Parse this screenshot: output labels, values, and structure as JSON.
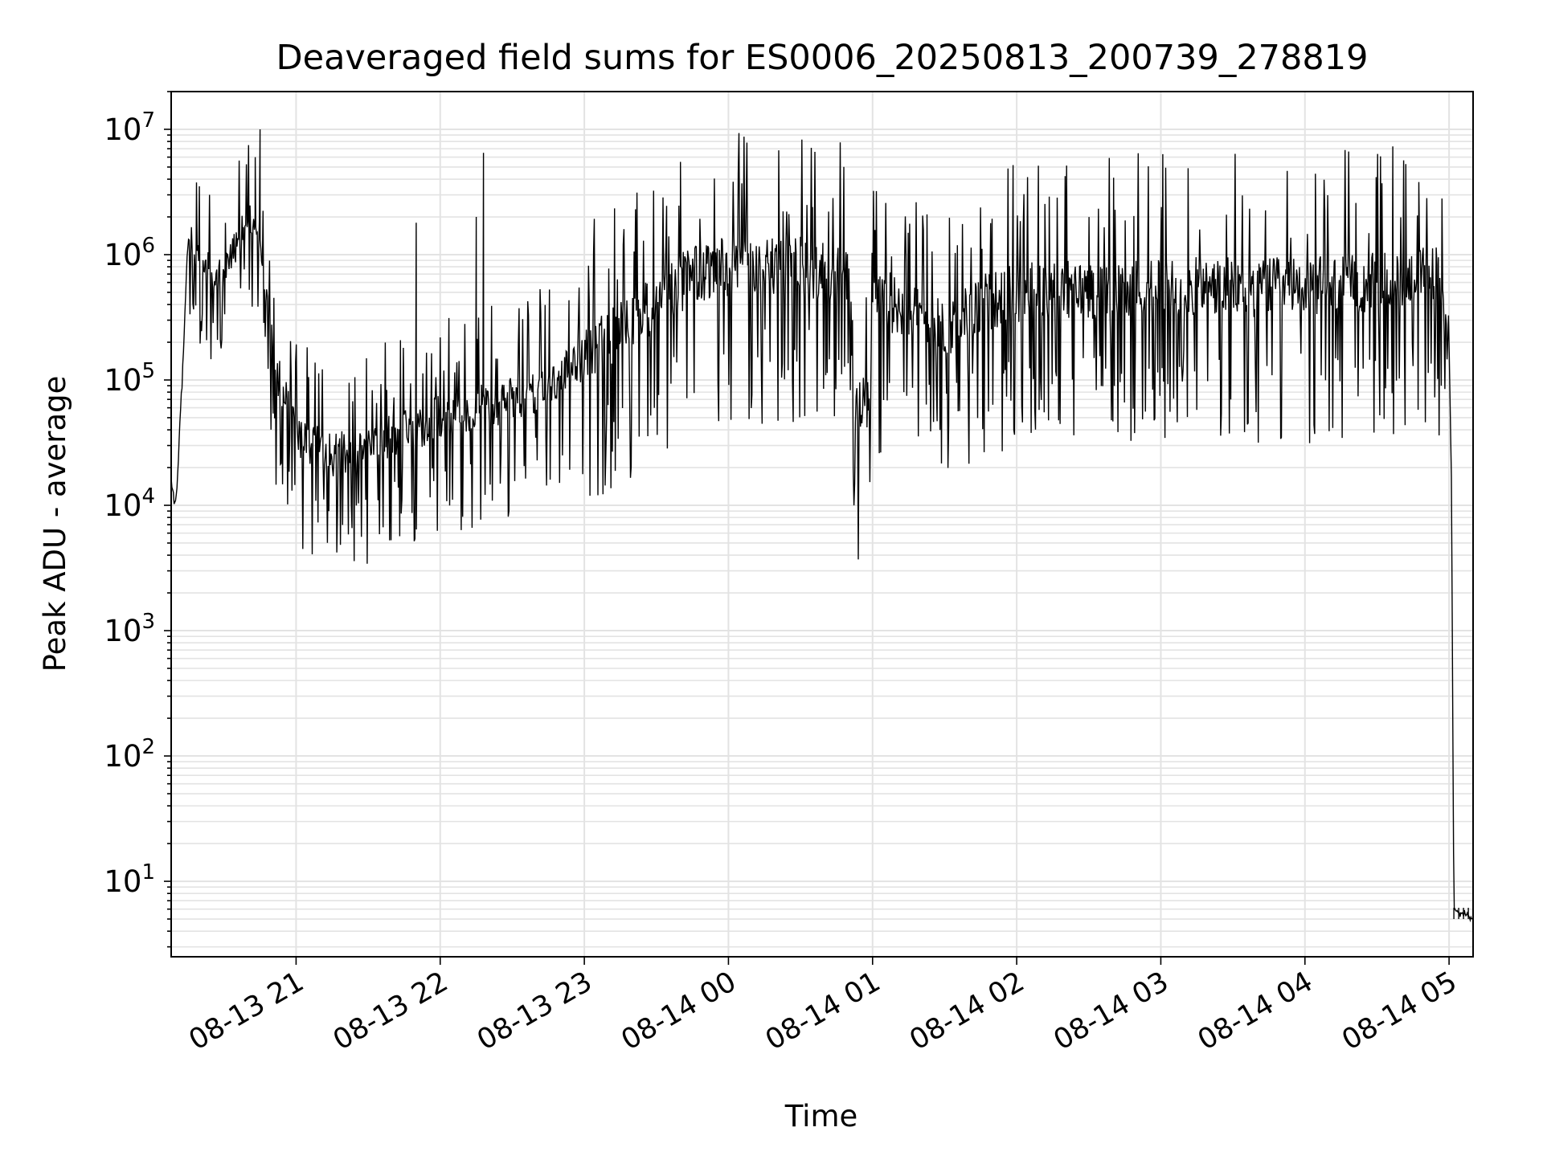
{
  "chart_data": {
    "type": "line",
    "title": "Deaveraged field sums for ES0006_20250813_200739_278819",
    "xlabel": "Time",
    "ylabel": "Peak ADU - average",
    "yscale": "log",
    "ylim": [
      2.5,
      20000000
    ],
    "xlim": [
      "2025-08-13 20:08",
      "2025-08-14 05:10"
    ],
    "grid": "major and minor",
    "line_color": "#000000",
    "x_ticks": [
      {
        "t": "2025-08-13 21:00",
        "label": "08-13 21"
      },
      {
        "t": "2025-08-13 22:00",
        "label": "08-13 22"
      },
      {
        "t": "2025-08-13 23:00",
        "label": "08-13 23"
      },
      {
        "t": "2025-08-14 00:00",
        "label": "08-14 00"
      },
      {
        "t": "2025-08-14 01:00",
        "label": "08-14 01"
      },
      {
        "t": "2025-08-14 02:00",
        "label": "08-14 02"
      },
      {
        "t": "2025-08-14 03:00",
        "label": "08-14 03"
      },
      {
        "t": "2025-08-14 04:00",
        "label": "08-14 04"
      },
      {
        "t": "2025-08-14 05:00",
        "label": "08-14 05"
      }
    ],
    "y_ticks": [
      {
        "value": 10,
        "base": "10",
        "exp": "1"
      },
      {
        "value": 100,
        "base": "10",
        "exp": "2"
      },
      {
        "value": 1000,
        "base": "10",
        "exp": "3"
      },
      {
        "value": 10000,
        "base": "10",
        "exp": "4"
      },
      {
        "value": 100000,
        "base": "10",
        "exp": "5"
      },
      {
        "value": 1000000,
        "base": "10",
        "exp": "6"
      },
      {
        "value": 10000000,
        "base": "10",
        "exp": "7"
      }
    ],
    "series": [
      {
        "baseline": [
          {
            "t": "2025-08-13 20:08",
            "y": 14000
          },
          {
            "t": "2025-08-13 20:10",
            "y": 11000
          },
          {
            "t": "2025-08-13 20:13",
            "y": 150000
          },
          {
            "t": "2025-08-13 20:15",
            "y": 1500000
          },
          {
            "t": "2025-08-13 20:20",
            "y": 800000
          },
          {
            "t": "2025-08-13 20:30",
            "y": 700000
          },
          {
            "t": "2025-08-13 20:40",
            "y": 2000000
          },
          {
            "t": "2025-08-13 20:45",
            "y": 1500000
          },
          {
            "t": "2025-08-13 20:50",
            "y": 150000
          },
          {
            "t": "2025-08-13 21:00",
            "y": 35000
          },
          {
            "t": "2025-08-13 21:15",
            "y": 25000
          },
          {
            "t": "2025-08-13 21:30",
            "y": 30000
          },
          {
            "t": "2025-08-13 21:45",
            "y": 38000
          },
          {
            "t": "2025-08-13 22:00",
            "y": 50000
          },
          {
            "t": "2025-08-13 22:30",
            "y": 70000
          },
          {
            "t": "2025-08-13 22:45",
            "y": 90000
          },
          {
            "t": "2025-08-13 23:00",
            "y": 150000
          },
          {
            "t": "2025-08-13 23:30",
            "y": 400000
          },
          {
            "t": "2025-08-13 23:45",
            "y": 700000
          },
          {
            "t": "2025-08-14 00:00",
            "y": 800000
          },
          {
            "t": "2025-08-14 00:30",
            "y": 800000
          },
          {
            "t": "2025-08-14 00:50",
            "y": 700000
          },
          {
            "t": "2025-08-14 00:53",
            "y": 60000
          },
          {
            "t": "2025-08-14 00:58",
            "y": 60000
          },
          {
            "t": "2025-08-14 01:00",
            "y": 500000
          },
          {
            "t": "2025-08-14 01:15",
            "y": 350000
          },
          {
            "t": "2025-08-14 01:30",
            "y": 250000
          },
          {
            "t": "2025-08-14 01:45",
            "y": 400000
          },
          {
            "t": "2025-08-14 02:00",
            "y": 500000
          },
          {
            "t": "2025-08-14 03:00",
            "y": 550000
          },
          {
            "t": "2025-08-14 04:00",
            "y": 550000
          },
          {
            "t": "2025-08-14 04:30",
            "y": 600000
          },
          {
            "t": "2025-08-14 04:55",
            "y": 700000
          },
          {
            "t": "2025-08-14 05:00",
            "y": 200000
          },
          {
            "t": "2025-08-14 05:01",
            "y": 15000
          },
          {
            "t": "2025-08-14 05:02",
            "y": 6
          },
          {
            "t": "2025-08-14 05:10",
            "y": 5
          }
        ],
        "peaks": [
          {
            "t": "2025-08-13 20:45",
            "y": 10000000
          },
          {
            "t": "2025-08-13 20:43",
            "y": 6000000
          },
          {
            "t": "2025-08-13 22:18",
            "y": 6500000
          },
          {
            "t": "2025-08-13 23:40",
            "y": 5500000
          },
          {
            "t": "2025-08-13 22:15",
            "y": 2000000
          },
          {
            "t": "2025-08-13 21:50",
            "y": 1800000
          },
          {
            "t": "2025-08-14 00:35",
            "y": 2400000
          }
        ]
      }
    ]
  }
}
